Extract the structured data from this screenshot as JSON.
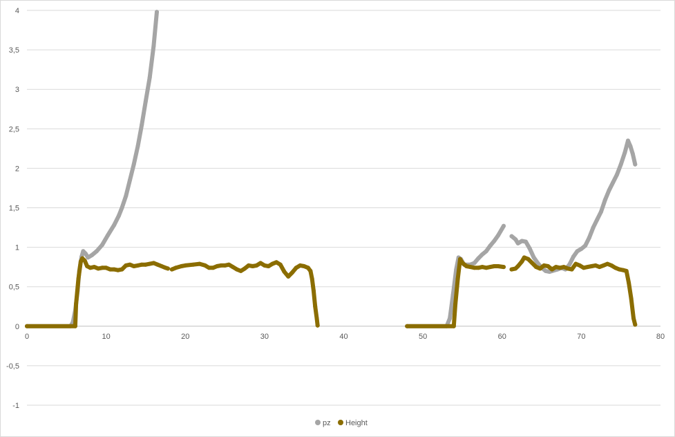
{
  "chart_data": {
    "type": "scatter",
    "xlim": [
      0,
      80
    ],
    "ylim": [
      -1,
      4
    ],
    "x_ticks": [
      "0",
      "10",
      "20",
      "30",
      "40",
      "50",
      "60",
      "70",
      "80"
    ],
    "y_ticks": [
      "-1",
      "-0,5",
      "0",
      "0,5",
      "1",
      "1,5",
      "2",
      "2,5",
      "3",
      "3,5",
      "4"
    ],
    "grid": true,
    "legend_position": "bottom",
    "series": [
      {
        "name": "pz",
        "color": "#a5a5a5",
        "segments": [
          [
            [
              0,
              0
            ],
            [
              5.5,
              0
            ],
            [
              5.8,
              0.05
            ],
            [
              6.1,
              0.2
            ],
            [
              6.4,
              0.45
            ],
            [
              6.6,
              0.7
            ],
            [
              6.9,
              0.88
            ],
            [
              7.1,
              0.95
            ],
            [
              7.4,
              0.92
            ],
            [
              7.7,
              0.87
            ],
            [
              8.2,
              0.9
            ],
            [
              8.8,
              0.95
            ],
            [
              9.5,
              1.03
            ],
            [
              10.2,
              1.15
            ],
            [
              11,
              1.28
            ],
            [
              11.6,
              1.4
            ],
            [
              12,
              1.5
            ],
            [
              12.5,
              1.65
            ],
            [
              13,
              1.85
            ],
            [
              13.5,
              2.05
            ],
            [
              14,
              2.28
            ],
            [
              14.5,
              2.55
            ],
            [
              15,
              2.85
            ],
            [
              15.5,
              3.15
            ],
            [
              16,
              3.55
            ],
            [
              16.4,
              3.98
            ]
          ],
          [
            [
              48,
              0
            ],
            [
              53,
              0
            ],
            [
              53.4,
              0.1
            ],
            [
              53.8,
              0.4
            ],
            [
              54.2,
              0.72
            ],
            [
              54.5,
              0.87
            ],
            [
              54.8,
              0.85
            ],
            [
              55.2,
              0.78
            ],
            [
              56,
              0.78
            ],
            [
              56.5,
              0.8
            ],
            [
              57,
              0.86
            ],
            [
              57.5,
              0.91
            ],
            [
              58,
              0.95
            ],
            [
              58.5,
              1.02
            ],
            [
              59,
              1.08
            ],
            [
              59.5,
              1.15
            ],
            [
              60.2,
              1.27
            ]
          ],
          [
            [
              61.2,
              1.14
            ],
            [
              61.7,
              1.1
            ],
            [
              62,
              1.05
            ],
            [
              62.5,
              1.08
            ],
            [
              63,
              1.07
            ],
            [
              63.5,
              0.98
            ],
            [
              64,
              0.87
            ],
            [
              64.5,
              0.8
            ],
            [
              65,
              0.74
            ],
            [
              65.5,
              0.7
            ],
            [
              66,
              0.69
            ],
            [
              67,
              0.72
            ],
            [
              67.5,
              0.74
            ],
            [
              68,
              0.72
            ],
            [
              68.5,
              0.78
            ],
            [
              69,
              0.88
            ],
            [
              69.5,
              0.95
            ],
            [
              70,
              0.98
            ],
            [
              70.5,
              1.02
            ],
            [
              71,
              1.12
            ],
            [
              71.5,
              1.25
            ],
            [
              72,
              1.35
            ],
            [
              72.5,
              1.45
            ],
            [
              73,
              1.6
            ],
            [
              73.5,
              1.72
            ],
            [
              74,
              1.82
            ],
            [
              74.5,
              1.92
            ],
            [
              75,
              2.05
            ],
            [
              75.5,
              2.2
            ],
            [
              75.9,
              2.35
            ],
            [
              76.2,
              2.28
            ],
            [
              76.5,
              2.18
            ],
            [
              76.8,
              2.05
            ]
          ]
        ]
      },
      {
        "name": "Height",
        "color": "#8b6d00",
        "segments": [
          [
            [
              0,
              0
            ],
            [
              6.1,
              0
            ],
            [
              6.2,
              0.28
            ],
            [
              6.5,
              0.6
            ],
            [
              6.8,
              0.82
            ],
            [
              7,
              0.86
            ],
            [
              7.3,
              0.83
            ],
            [
              7.6,
              0.76
            ],
            [
              8,
              0.74
            ],
            [
              8.5,
              0.75
            ],
            [
              9,
              0.73
            ],
            [
              9.5,
              0.74
            ],
            [
              10,
              0.74
            ],
            [
              10.5,
              0.72
            ],
            [
              11,
              0.72
            ],
            [
              11.5,
              0.71
            ],
            [
              12,
              0.72
            ],
            [
              12.5,
              0.77
            ],
            [
              13,
              0.78
            ],
            [
              13.5,
              0.76
            ],
            [
              14,
              0.77
            ],
            [
              14.5,
              0.78
            ],
            [
              15,
              0.78
            ],
            [
              15.5,
              0.79
            ],
            [
              16,
              0.8
            ],
            [
              16.5,
              0.78
            ],
            [
              17,
              0.76
            ],
            [
              17.5,
              0.74
            ],
            [
              17.8,
              0.73
            ]
          ],
          [
            [
              18.3,
              0.72
            ],
            [
              18.8,
              0.74
            ],
            [
              19.5,
              0.76
            ],
            [
              20,
              0.77
            ],
            [
              21,
              0.78
            ],
            [
              21.8,
              0.79
            ],
            [
              22.5,
              0.77
            ],
            [
              23,
              0.74
            ],
            [
              23.5,
              0.74
            ],
            [
              24,
              0.76
            ],
            [
              24.5,
              0.77
            ],
            [
              25,
              0.77
            ],
            [
              25.5,
              0.78
            ],
            [
              26,
              0.75
            ],
            [
              26.5,
              0.72
            ],
            [
              27,
              0.7
            ],
            [
              27.5,
              0.73
            ],
            [
              28,
              0.77
            ],
            [
              28.5,
              0.76
            ],
            [
              29,
              0.77
            ],
            [
              29.5,
              0.8
            ],
            [
              30,
              0.77
            ],
            [
              30.5,
              0.76
            ],
            [
              31,
              0.79
            ],
            [
              31.5,
              0.81
            ],
            [
              32,
              0.78
            ],
            [
              32.5,
              0.69
            ],
            [
              33,
              0.63
            ],
            [
              33.5,
              0.68
            ],
            [
              34,
              0.74
            ],
            [
              34.5,
              0.77
            ],
            [
              35,
              0.76
            ],
            [
              35.5,
              0.74
            ],
            [
              35.8,
              0.7
            ],
            [
              36,
              0.6
            ],
            [
              36.2,
              0.45
            ],
            [
              36.4,
              0.25
            ],
            [
              36.6,
              0.1
            ],
            [
              36.7,
              0.01
            ]
          ],
          [
            [
              48,
              0
            ],
            [
              53.9,
              0
            ],
            [
              54.1,
              0.28
            ],
            [
              54.4,
              0.6
            ],
            [
              54.7,
              0.85
            ],
            [
              55,
              0.8
            ],
            [
              55.5,
              0.76
            ],
            [
              56,
              0.75
            ],
            [
              56.5,
              0.74
            ],
            [
              57,
              0.74
            ],
            [
              57.5,
              0.75
            ],
            [
              58,
              0.74
            ],
            [
              58.5,
              0.75
            ],
            [
              59,
              0.76
            ],
            [
              59.5,
              0.76
            ],
            [
              60.2,
              0.75
            ]
          ],
          [
            [
              61.2,
              0.72
            ],
            [
              61.7,
              0.73
            ],
            [
              62,
              0.76
            ],
            [
              62.5,
              0.82
            ],
            [
              62.8,
              0.87
            ],
            [
              63.3,
              0.85
            ],
            [
              63.8,
              0.8
            ],
            [
              64.3,
              0.75
            ],
            [
              64.8,
              0.73
            ],
            [
              65.3,
              0.77
            ],
            [
              65.8,
              0.76
            ],
            [
              66.3,
              0.72
            ],
            [
              66.8,
              0.75
            ],
            [
              67.3,
              0.74
            ],
            [
              67.8,
              0.75
            ],
            [
              68.3,
              0.73
            ],
            [
              68.8,
              0.72
            ],
            [
              69.3,
              0.79
            ],
            [
              69.8,
              0.77
            ],
            [
              70.3,
              0.74
            ],
            [
              70.8,
              0.75
            ],
            [
              71.3,
              0.76
            ],
            [
              71.8,
              0.77
            ],
            [
              72.3,
              0.75
            ],
            [
              72.8,
              0.77
            ],
            [
              73.3,
              0.79
            ],
            [
              73.8,
              0.77
            ],
            [
              74.3,
              0.74
            ],
            [
              74.8,
              0.72
            ],
            [
              75.3,
              0.71
            ],
            [
              75.7,
              0.7
            ],
            [
              76,
              0.55
            ],
            [
              76.3,
              0.35
            ],
            [
              76.6,
              0.1
            ],
            [
              76.8,
              0.02
            ]
          ]
        ]
      }
    ]
  }
}
